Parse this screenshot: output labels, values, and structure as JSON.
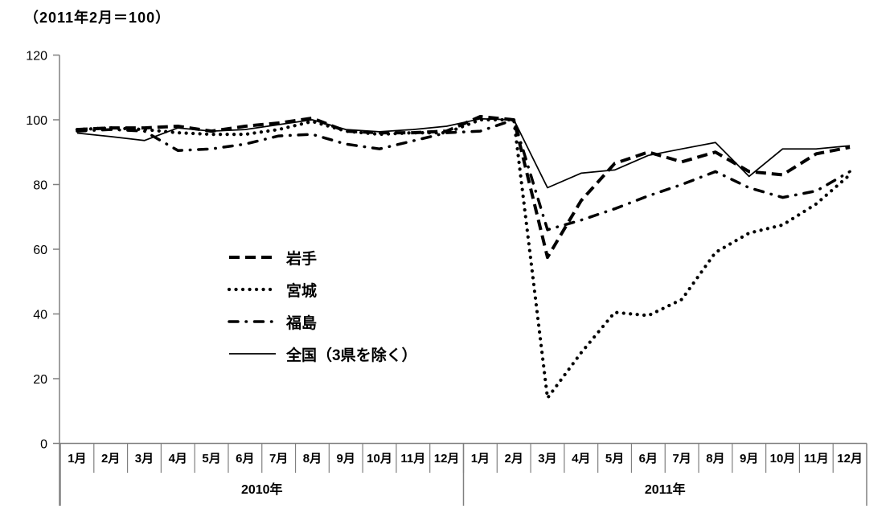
{
  "title": "（2011年2月＝100）",
  "colors": {
    "line": "#000000",
    "axis": "#808080",
    "text": "#000000"
  },
  "legend": {
    "items": [
      "岩手",
      "宮城",
      "福島",
      "全国（3県を除く）"
    ]
  },
  "chart_data": {
    "type": "line",
    "title": "（2011年2月＝100）",
    "ylim": [
      0,
      120
    ],
    "yticks": [
      0,
      20,
      40,
      60,
      80,
      100,
      120
    ],
    "grid": false,
    "legend_position": "inside-left",
    "years": [
      {
        "label": "2010年",
        "months": [
          "1月",
          "2月",
          "3月",
          "4月",
          "5月",
          "6月",
          "7月",
          "8月",
          "9月",
          "10月",
          "11月",
          "12月"
        ]
      },
      {
        "label": "2011年",
        "months": [
          "1月",
          "2月",
          "3月",
          "4月",
          "5月",
          "6月",
          "7月",
          "8月",
          "9月",
          "10月",
          "11月",
          "12月"
        ]
      }
    ],
    "series": [
      {
        "name": "岩手",
        "style": "dashed",
        "values": [
          97,
          97.5,
          97.5,
          98,
          96.5,
          98,
          99,
          100.5,
          96.5,
          96,
          96,
          96.5,
          101,
          100,
          57.5,
          75,
          86.5,
          90,
          87,
          90,
          84,
          83,
          89.5,
          91.5
        ]
      },
      {
        "name": "宮城",
        "style": "dotted",
        "values": [
          97,
          97.5,
          97,
          96,
          95.5,
          95.5,
          97,
          99.5,
          96.5,
          95.5,
          96,
          96,
          100,
          100,
          14,
          28,
          40.5,
          39.5,
          44.5,
          59,
          65,
          67.5,
          74,
          83
        ]
      },
      {
        "name": "福島",
        "style": "dashdot",
        "values": [
          96.5,
          97,
          96.5,
          90.5,
          91,
          92.5,
          95,
          95.5,
          92.5,
          91,
          93.5,
          96,
          96.5,
          100,
          66,
          69,
          72.5,
          76.5,
          80,
          84,
          79,
          76,
          78,
          84
        ]
      },
      {
        "name": "全国（3県を除く）",
        "style": "solid",
        "values": [
          95.9,
          94.8,
          93.6,
          97.5,
          96.5,
          97,
          98.5,
          100,
          97,
          96.3,
          97,
          98,
          100.3,
          100,
          79,
          83.5,
          84.5,
          89,
          91,
          93,
          82.5,
          91,
          91,
          92
        ]
      }
    ]
  }
}
